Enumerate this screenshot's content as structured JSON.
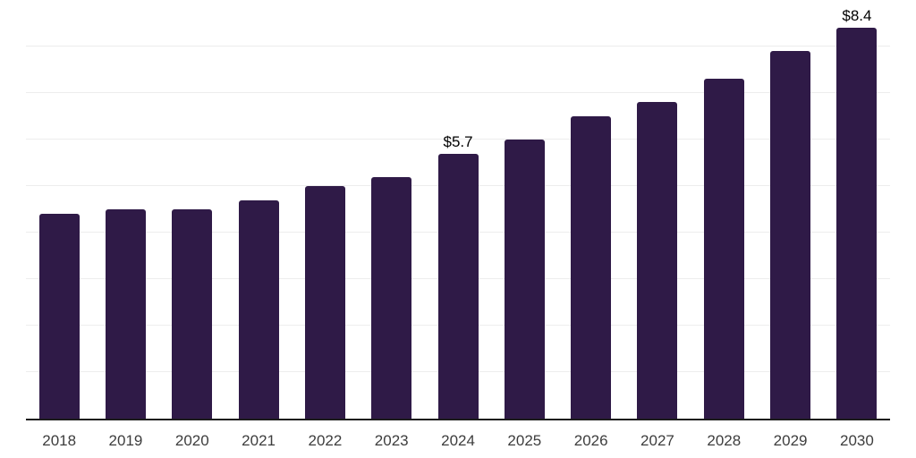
{
  "chart_data": {
    "type": "bar",
    "categories": [
      "2018",
      "2019",
      "2020",
      "2021",
      "2022",
      "2023",
      "2024",
      "2025",
      "2026",
      "2027",
      "2028",
      "2029",
      "2030"
    ],
    "values": [
      4.4,
      4.5,
      4.5,
      4.7,
      5.0,
      5.2,
      5.7,
      6.0,
      6.5,
      6.8,
      7.3,
      7.9,
      8.4
    ],
    "annotations": [
      {
        "category": "2024",
        "text": "$5.7"
      },
      {
        "category": "2030",
        "text": "$8.4"
      }
    ],
    "title": "",
    "xlabel": "",
    "ylabel": "",
    "ylim": [
      0,
      9
    ],
    "gridline_step": 1,
    "grid": true,
    "legend": false,
    "bar_color": "#2f1a47",
    "grid_color": "#ededed",
    "axis_color": "#1c1c1c",
    "tick_label_color": "#3d3d3d",
    "annotation_color": "#000000"
  }
}
